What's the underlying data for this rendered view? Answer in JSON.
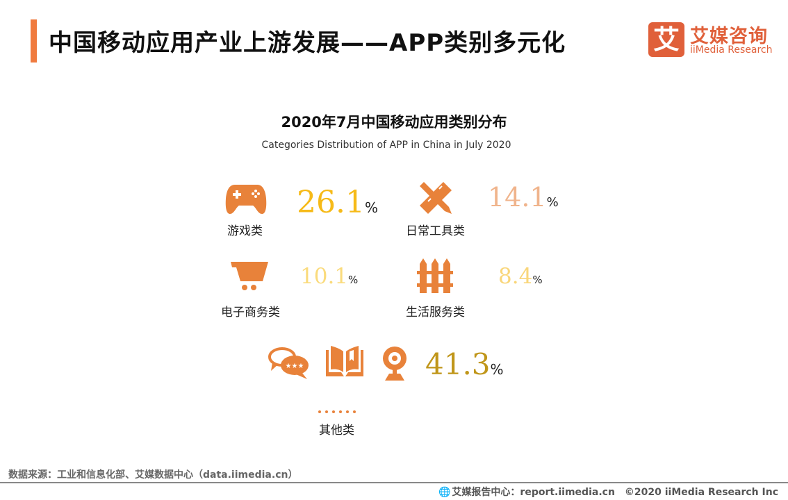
{
  "header": {
    "title": "中国移动应用产业上游发展——APP类别多元化",
    "accent_color": "#F07B3F",
    "logo": {
      "mark": "艾",
      "name_cn": "艾媒咨询",
      "name_en": "iiMedia Research",
      "color": "#E0603A"
    }
  },
  "chart": {
    "title": "2020年7月中国移动应用类别分布",
    "subtitle": "Categories Distribution of APP in China in July 2020",
    "icon_color": "#E8823A",
    "items": [
      {
        "label": "游戏类",
        "value": "26.1",
        "unit": "%",
        "icon": "gamepad-icon",
        "color": "#F6BA18"
      },
      {
        "label": "日常工具类",
        "value": "14.1",
        "unit": "%",
        "icon": "pencil-ruler-icon",
        "color": "#F0B48C"
      },
      {
        "label": "电子商务类",
        "value": "10.1",
        "unit": "%",
        "icon": "shopping-cart-icon",
        "color": "#FADB7C"
      },
      {
        "label": "生活服务类",
        "value": "8.4",
        "unit": "%",
        "icon": "fence-icon",
        "color": "#F9D67A"
      },
      {
        "label": "其他类",
        "value": "41.3",
        "unit": "%",
        "icon": "chat-book-webcam-icons",
        "color": "#C0961A"
      }
    ]
  },
  "footer": {
    "source": "数据来源：工业和信息化部、艾媒数据中心（data.iimedia.cn）",
    "report_center": "艾媒报告中心：report.iimedia.cn",
    "copyright": "©2020  iiMedia Research  Inc"
  }
}
